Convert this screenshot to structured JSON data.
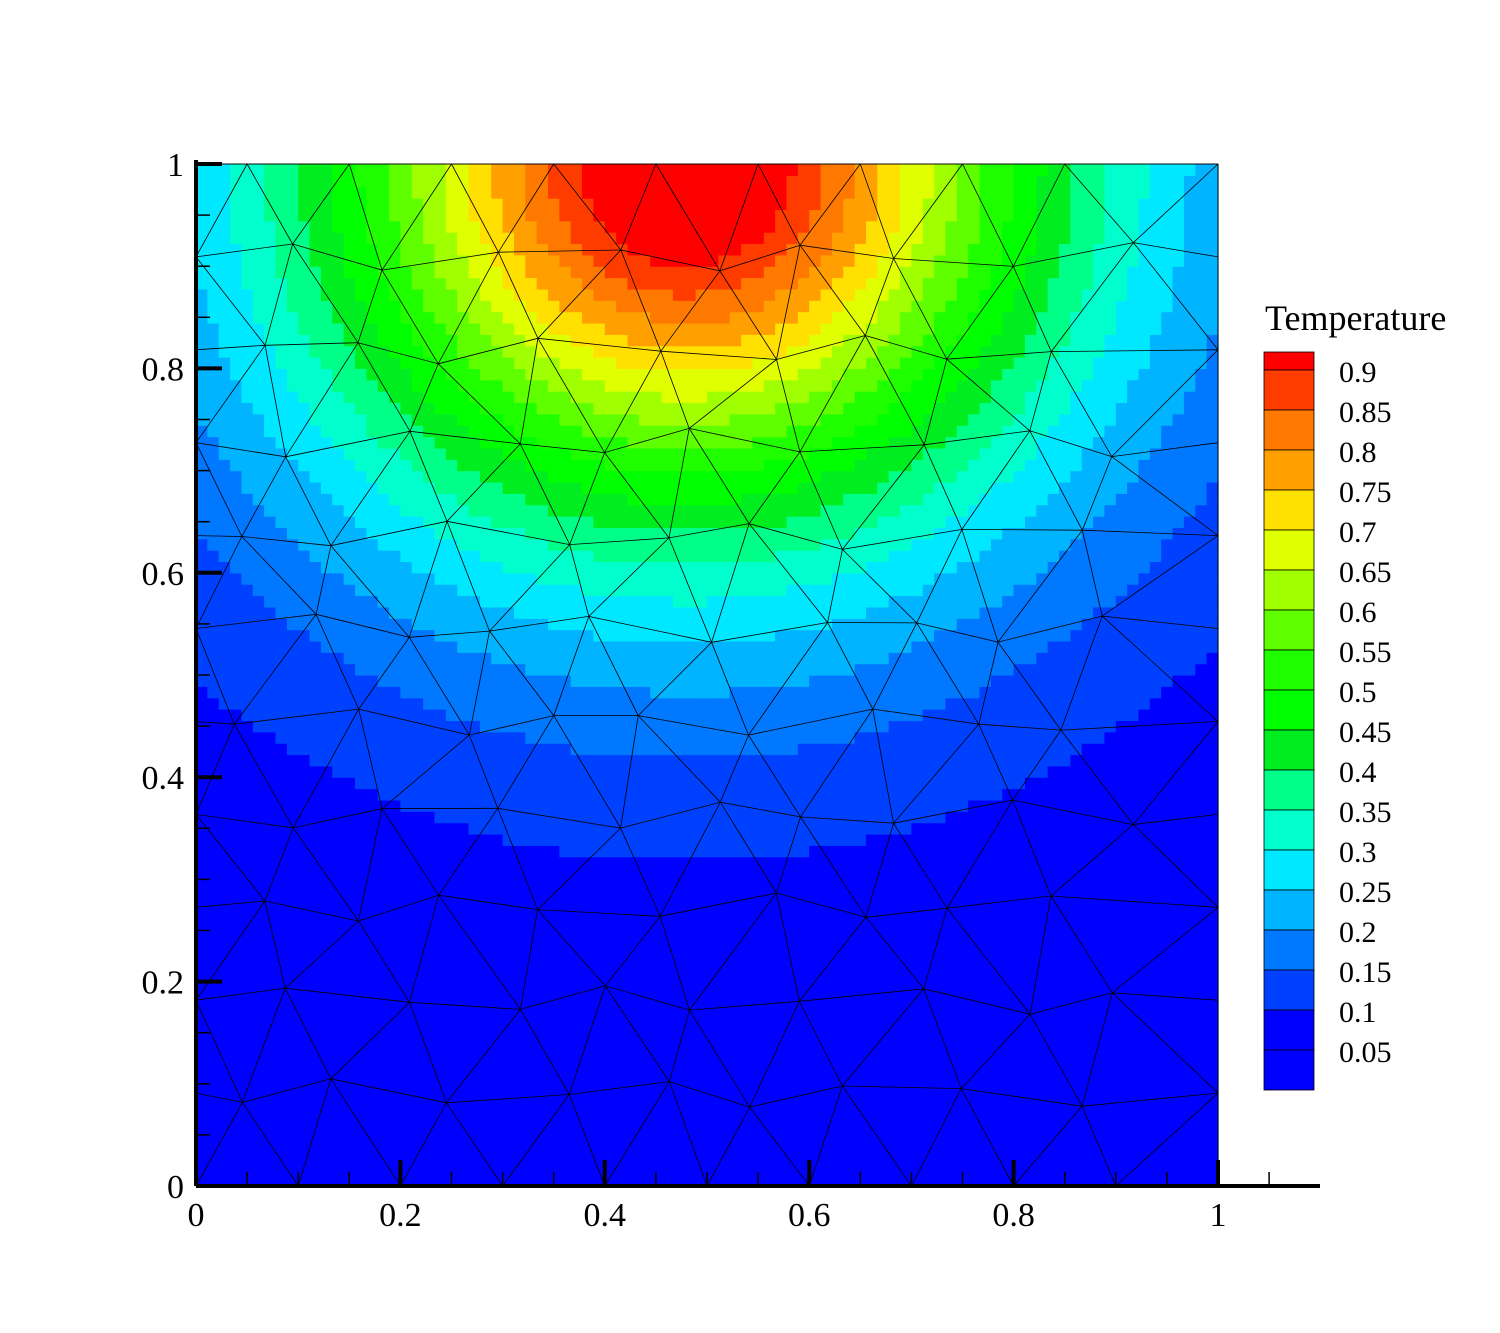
{
  "chart_data": {
    "type": "heatmap",
    "description_kind": "filled-contour",
    "xlim": [
      0,
      1
    ],
    "ylim": [
      0,
      1
    ],
    "x_ticks": [
      "0",
      "0.2",
      "0.4",
      "0.6",
      "0.8",
      "1"
    ],
    "y_ticks": [
      "0",
      "0.2",
      "0.4",
      "0.6",
      "0.8",
      "1"
    ],
    "grid": false,
    "legend": {
      "title": "Temperature",
      "placement": "right",
      "levels": [
        "0.9",
        "0.85",
        "0.8",
        "0.75",
        "0.7",
        "0.65",
        "0.6",
        "0.55",
        "0.5",
        "0.45",
        "0.4",
        "0.35",
        "0.3",
        "0.25",
        "0.2",
        "0.15",
        "0.1",
        "0.05"
      ],
      "colors": [
        "#ff0000",
        "#ff3c00",
        "#ff7800",
        "#ffa000",
        "#ffe000",
        "#e0ff00",
        "#a0ff00",
        "#60ff00",
        "#20ff00",
        "#00ff00",
        "#00ee20",
        "#00ff88",
        "#00ffcc",
        "#00e8ff",
        "#00b4ff",
        "#0078ff",
        "#0040ff",
        "#0000ff"
      ]
    },
    "field": {
      "center_x": 0.48,
      "peak_y": 1.0,
      "peak_value": 0.95,
      "min_value": 0.0
    }
  }
}
